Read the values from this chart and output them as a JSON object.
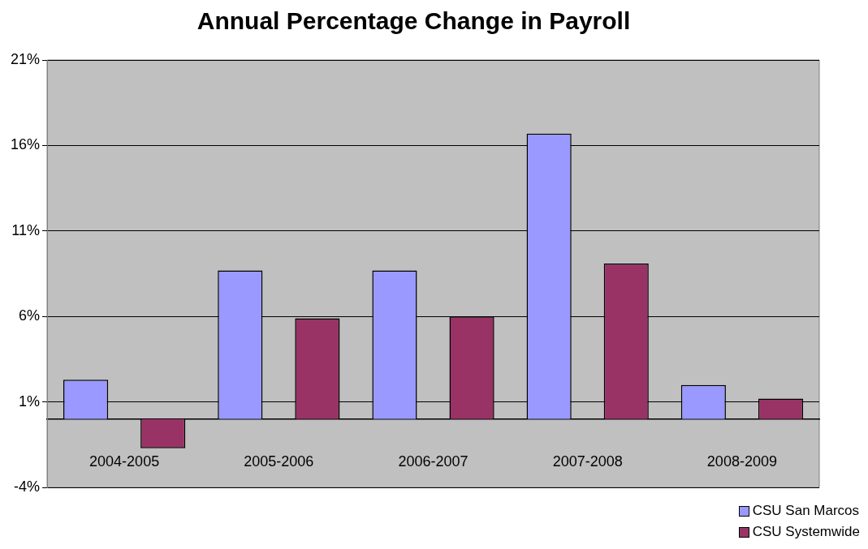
{
  "chart_data": {
    "type": "bar",
    "title": "Annual Percentage Change in Payroll",
    "categories": [
      "2004-2005",
      "2005-2006",
      "2006-2007",
      "2007-2008",
      "2008-2009"
    ],
    "series": [
      {
        "name": "CSU San Marcos",
        "color": "#9999ff",
        "values": [
          2.3,
          8.7,
          8.7,
          16.7,
          2.0
        ]
      },
      {
        "name": "CSU Systemwide",
        "color": "#993366",
        "values": [
          -1.7,
          5.9,
          6.0,
          9.1,
          1.2
        ]
      }
    ],
    "ylim": [
      -4,
      21
    ],
    "yticks": [
      {
        "value": -4,
        "label": "-4%"
      },
      {
        "value": 1,
        "label": "1%"
      },
      {
        "value": 6,
        "label": "6%"
      },
      {
        "value": 11,
        "label": "11%"
      },
      {
        "value": 16,
        "label": "16%"
      },
      {
        "value": 21,
        "label": "21%"
      }
    ],
    "grid": "y",
    "legend": "bottom right"
  }
}
